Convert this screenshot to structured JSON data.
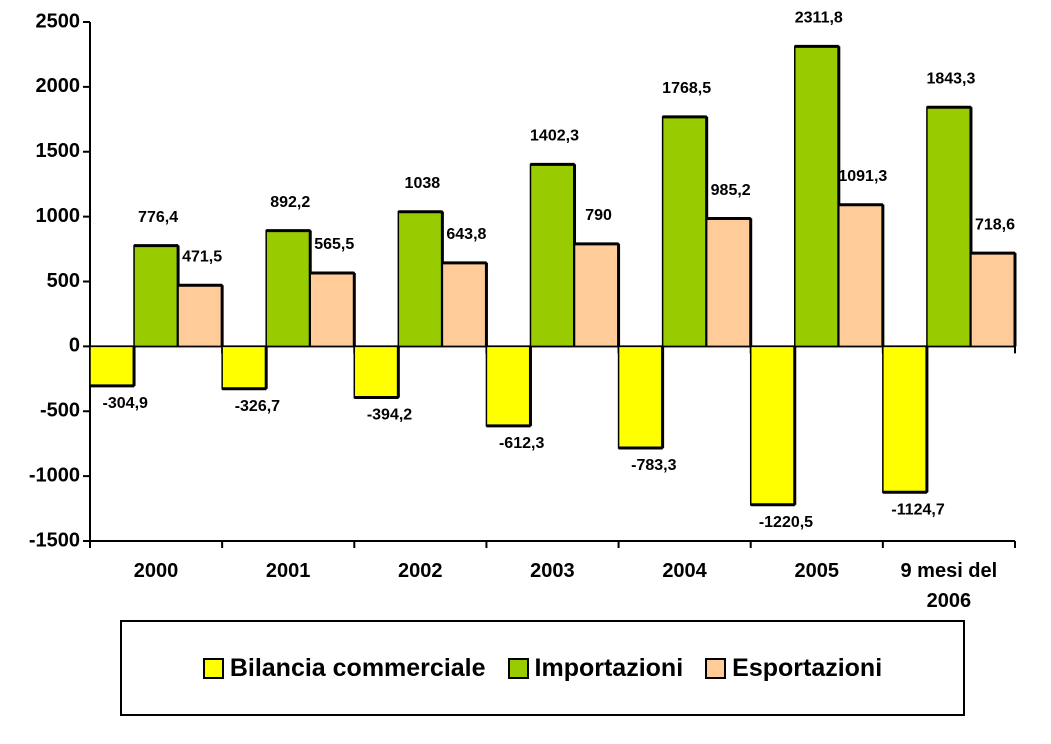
{
  "chart_data": {
    "type": "bar",
    "categories": [
      "2000",
      "2001",
      "2002",
      "2003",
      "2004",
      "2005",
      "9 mesi del 2006"
    ],
    "series": [
      {
        "name": "Bilancia commerciale",
        "color": "#ffff00",
        "values": [
          -304.9,
          -326.7,
          -394.2,
          -612.3,
          -783.3,
          -1220.5,
          -1124.7
        ],
        "value_labels": [
          "-304,9",
          "-326,7",
          "-394,2",
          "-612,3",
          "-783,3",
          "-1220,5",
          "-1124,7"
        ]
      },
      {
        "name": "Importazioni",
        "color": "#99cc00",
        "values": [
          776.4,
          892.2,
          1038,
          1402.3,
          1768.5,
          2311.8,
          1843.3
        ],
        "value_labels": [
          "776,4",
          "892,2",
          "1038",
          "1402,3",
          "1768,5",
          "2311,8",
          "1843,3"
        ]
      },
      {
        "name": "Esportazioni",
        "color": "#ffcc99",
        "values": [
          471.5,
          565.5,
          643.8,
          790,
          985.2,
          1091.3,
          718.6
        ],
        "value_labels": [
          "471,5",
          "565,5",
          "643,8",
          "790",
          "985,2",
          "1091,3",
          "718,6"
        ]
      }
    ],
    "ylim": [
      -1500,
      2500
    ],
    "yticks": [
      -1500,
      -1000,
      -500,
      0,
      500,
      1000,
      1500,
      2000,
      2500
    ],
    "legend": "bottom"
  }
}
